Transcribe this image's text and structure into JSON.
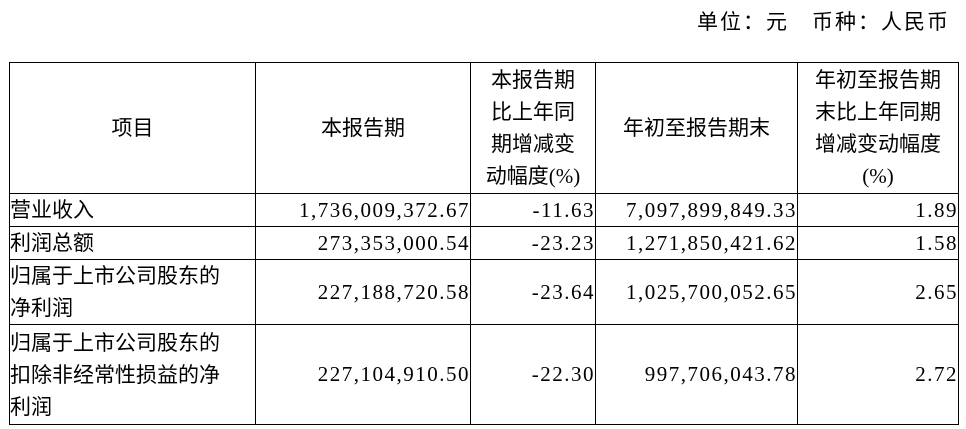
{
  "meta": {
    "unit_label": "单位：元　币种：人民币"
  },
  "table": {
    "columns": [
      {
        "label": "项目"
      },
      {
        "label": "本报告期"
      },
      {
        "label": "本报告期\n比上年同\n期增减变\n动幅度(%)"
      },
      {
        "label": "年初至报告期末"
      },
      {
        "label": "年初至报告期\n末比上年同期\n增减变动幅度\n(%)"
      }
    ],
    "rows": [
      {
        "item": "营业收入",
        "current_period": "1,736,009,372.67",
        "yoy_change": "-11.63",
        "ytd": "7,097,899,849.33",
        "ytd_yoy_change": "1.89"
      },
      {
        "item": "利润总额",
        "current_period": "273,353,000.54",
        "yoy_change": "-23.23",
        "ytd": "1,271,850,421.62",
        "ytd_yoy_change": "1.58"
      },
      {
        "item": "归属于上市公司股东的\n净利润",
        "current_period": "227,188,720.58",
        "yoy_change": "-23.64",
        "ytd": "1,025,700,052.65",
        "ytd_yoy_change": "2.65"
      },
      {
        "item": "归属于上市公司股东的\n扣除非经常性损益的净\n利润",
        "current_period": "227,104,910.50",
        "yoy_change": "-22.30",
        "ytd": "997,706,043.78",
        "ytd_yoy_change": "2.72"
      }
    ]
  }
}
